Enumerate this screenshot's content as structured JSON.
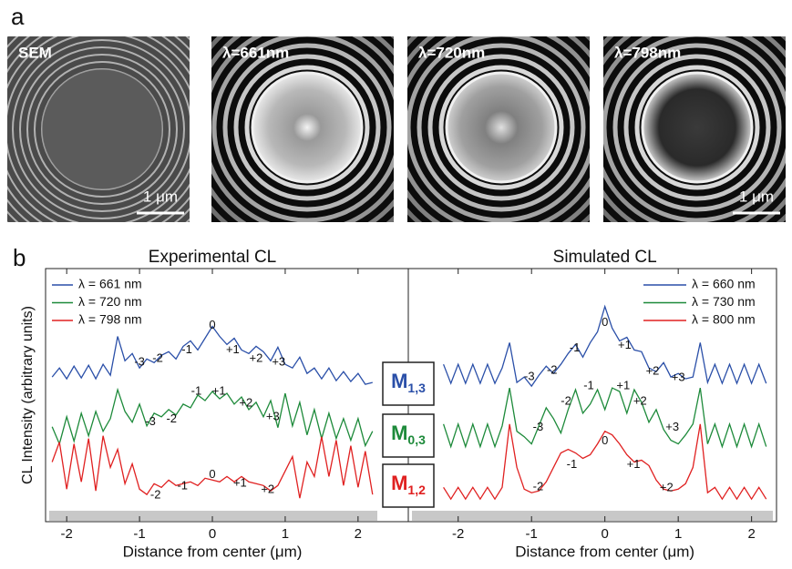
{
  "panel_a": {
    "label": "a",
    "images": [
      {
        "label": "SEM",
        "scale_bar": "1 μm"
      },
      {
        "label": "λ=661nm"
      },
      {
        "label": "λ=720nm"
      },
      {
        "label": "λ=798nm",
        "scale_bar": "1 μm"
      }
    ]
  },
  "panel_b_label": "b",
  "modes": [
    {
      "main": "M",
      "sub": "1,3",
      "color": "#2a4fa8"
    },
    {
      "main": "M",
      "sub": "0,3",
      "color": "#1d8a3a"
    },
    {
      "main": "M",
      "sub": "1,2",
      "color": "#e02020"
    }
  ],
  "chart_data": [
    {
      "type": "line",
      "title": "Experimental CL",
      "xlabel": "Distance from center (μm)",
      "ylabel": "CL Intensity (arbitrary units)",
      "x": [
        -2.2,
        -2.1,
        -2.0,
        -1.9,
        -1.8,
        -1.7,
        -1.6,
        -1.5,
        -1.4,
        -1.3,
        -1.2,
        -1.1,
        -1.0,
        -0.9,
        -0.8,
        -0.7,
        -0.6,
        -0.5,
        -0.4,
        -0.3,
        -0.2,
        -0.1,
        0,
        0.1,
        0.2,
        0.3,
        0.4,
        0.5,
        0.6,
        0.7,
        0.8,
        0.9,
        1.0,
        1.1,
        1.2,
        1.3,
        1.4,
        1.5,
        1.6,
        1.7,
        1.8,
        1.9,
        2.0,
        2.1,
        2.2
      ],
      "xlim": [
        -2.29,
        2.69
      ],
      "xticks": [
        -2,
        -1,
        0,
        1,
        2
      ],
      "ylim": [
        0,
        28
      ],
      "legend": "upper left",
      "series": [
        {
          "name": "λ = 661 nm",
          "color": "#2a4fa8",
          "values": [
            16.0,
            17.0,
            15.8,
            17.2,
            15.9,
            17.3,
            15.8,
            17.4,
            16.2,
            20.5,
            17.8,
            18.6,
            17.0,
            18.0,
            17.6,
            18.4,
            18.8,
            18.0,
            19.4,
            20.0,
            19.0,
            20.3,
            21.6,
            20.5,
            19.6,
            20.3,
            19.0,
            18.6,
            19.4,
            18.8,
            17.8,
            19.3,
            17.4,
            17.0,
            18.2,
            16.4,
            17.0,
            15.8,
            17.0,
            15.6,
            16.6,
            15.5,
            16.4,
            15.2,
            15.4
          ]
        },
        {
          "name": "λ = 720 nm",
          "color": "#1d8a3a",
          "values": [
            10.5,
            8.6,
            11.6,
            8.9,
            12.0,
            9.5,
            12.2,
            10.0,
            11.4,
            14.6,
            12.2,
            11.0,
            13.0,
            10.6,
            12.0,
            11.6,
            12.4,
            11.8,
            13.0,
            12.6,
            14.0,
            13.4,
            14.4,
            13.6,
            14.2,
            13.0,
            13.8,
            12.4,
            13.2,
            11.6,
            13.4,
            10.4,
            14.2,
            10.6,
            13.2,
            9.6,
            12.4,
            9.2,
            12.0,
            9.2,
            11.4,
            9.0,
            11.4,
            8.4,
            10.0
          ]
        },
        {
          "name": "λ = 798 nm",
          "color": "#e02020",
          "values": [
            6.6,
            8.8,
            3.6,
            8.6,
            4.4,
            9.2,
            3.4,
            9.5,
            6.0,
            8.0,
            4.2,
            6.4,
            3.6,
            3.0,
            4.2,
            3.8,
            4.6,
            4.0,
            4.2,
            4.4,
            4.0,
            4.8,
            4.6,
            4.4,
            5.0,
            4.4,
            5.0,
            4.4,
            4.2,
            4.0,
            3.4,
            4.0,
            5.6,
            7.2,
            2.6,
            6.6,
            5.0,
            9.4,
            5.0,
            9.0,
            4.0,
            8.4,
            3.8,
            7.8,
            3.0
          ]
        }
      ],
      "annotations": [
        {
          "text": "-3",
          "x": -1.0,
          "y": 17.6
        },
        {
          "text": "-2",
          "x": -0.75,
          "y": 18.0
        },
        {
          "text": "-1",
          "x": -0.35,
          "y": 19.0
        },
        {
          "text": "0",
          "x": 0,
          "y": 21.7
        },
        {
          "text": "+1",
          "x": 0.28,
          "y": 19.0
        },
        {
          "text": "+2",
          "x": 0.6,
          "y": 18.0
        },
        {
          "text": "+3",
          "x": 0.91,
          "y": 17.6
        },
        {
          "text": "-3",
          "x": -0.85,
          "y": 11.0
        },
        {
          "text": "-2",
          "x": -0.56,
          "y": 11.3
        },
        {
          "text": "-1",
          "x": -0.22,
          "y": 14.4
        },
        {
          "text": "+1",
          "x": 0.09,
          "y": 14.4
        },
        {
          "text": "+2",
          "x": 0.46,
          "y": 13.1
        },
        {
          "text": "+3",
          "x": 0.83,
          "y": 11.6
        },
        {
          "text": "-2",
          "x": -0.78,
          "y": 2.9
        },
        {
          "text": "-1",
          "x": -0.41,
          "y": 3.9
        },
        {
          "text": "0",
          "x": 0,
          "y": 5.2
        },
        {
          "text": "+1",
          "x": 0.38,
          "y": 4.2
        },
        {
          "text": "+2",
          "x": 0.76,
          "y": 3.5
        }
      ]
    },
    {
      "type": "line",
      "title": "Simulated CL",
      "xlabel": "Distance from center (μm)",
      "x": [
        -2.2,
        -2.1,
        -2.0,
        -1.9,
        -1.8,
        -1.7,
        -1.6,
        -1.5,
        -1.4,
        -1.3,
        -1.2,
        -1.1,
        -1.0,
        -0.9,
        -0.8,
        -0.7,
        -0.6,
        -0.5,
        -0.4,
        -0.3,
        -0.2,
        -0.1,
        0,
        0.1,
        0.2,
        0.3,
        0.4,
        0.5,
        0.6,
        0.7,
        0.8,
        0.9,
        1.0,
        1.1,
        1.2,
        1.3,
        1.4,
        1.5,
        1.6,
        1.7,
        1.8,
        1.9,
        2.0,
        2.1,
        2.2
      ],
      "xlim": [
        -2.68,
        2.34
      ],
      "xticks": [
        -2,
        -1,
        0,
        1,
        2
      ],
      "ylim": [
        0,
        28
      ],
      "legend": "upper right",
      "series": [
        {
          "name": "λ = 660 nm",
          "color": "#2a4fa8",
          "values": [
            17.4,
            15.3,
            17.4,
            15.3,
            17.4,
            15.3,
            17.4,
            15.3,
            17.0,
            19.8,
            15.4,
            16.0,
            15.0,
            16.2,
            17.2,
            16.4,
            17.4,
            18.6,
            19.6,
            18.2,
            19.8,
            21.0,
            23.8,
            21.4,
            20.0,
            20.4,
            19.0,
            18.8,
            17.0,
            16.6,
            17.6,
            16.0,
            16.4,
            15.8,
            16.0,
            19.8,
            15.4,
            17.4,
            15.3,
            17.4,
            15.3,
            17.4,
            15.3,
            17.4,
            15.3
          ]
        },
        {
          "name": "λ = 730 nm",
          "color": "#1d8a3a",
          "values": [
            10.8,
            8.3,
            10.8,
            8.3,
            10.8,
            8.3,
            10.8,
            8.3,
            10.6,
            14.8,
            10.0,
            9.4,
            8.6,
            10.6,
            12.6,
            11.4,
            9.8,
            12.4,
            14.6,
            12.0,
            13.0,
            14.6,
            12.4,
            14.8,
            14.4,
            12.0,
            14.6,
            13.2,
            11.0,
            12.4,
            10.2,
            9.0,
            8.6,
            9.6,
            10.8,
            14.8,
            8.6,
            10.8,
            8.3,
            10.8,
            8.3,
            10.8,
            8.3,
            10.8,
            8.3
          ]
        },
        {
          "name": "λ = 800 nm",
          "color": "#e02020",
          "values": [
            3.8,
            2.5,
            3.8,
            2.5,
            3.8,
            2.5,
            3.8,
            2.5,
            3.8,
            10.8,
            6.0,
            3.6,
            3.2,
            3.4,
            4.4,
            6.0,
            7.6,
            8.0,
            7.6,
            7.0,
            7.4,
            8.6,
            10.0,
            9.6,
            8.6,
            7.4,
            6.6,
            6.8,
            6.2,
            4.6,
            3.6,
            3.4,
            3.6,
            4.2,
            6.0,
            10.8,
            3.2,
            3.8,
            2.5,
            3.8,
            2.5,
            3.8,
            2.5,
            3.8,
            2.5
          ]
        }
      ],
      "annotations": [
        {
          "text": "-3",
          "x": -1.03,
          "y": 16.0
        },
        {
          "text": "-2",
          "x": -0.72,
          "y": 16.7
        },
        {
          "text": "-1",
          "x": -0.41,
          "y": 19.2
        },
        {
          "text": "0",
          "x": 0,
          "y": 22.0
        },
        {
          "text": "+1",
          "x": 0.27,
          "y": 19.5
        },
        {
          "text": "+2",
          "x": 0.65,
          "y": 16.6
        },
        {
          "text": "+3",
          "x": 1.0,
          "y": 15.9
        },
        {
          "text": "-3",
          "x": -0.91,
          "y": 10.4
        },
        {
          "text": "-2",
          "x": -0.53,
          "y": 13.3
        },
        {
          "text": "-1",
          "x": -0.22,
          "y": 15.0
        },
        {
          "text": "+1",
          "x": 0.25,
          "y": 15.0
        },
        {
          "text": "+2",
          "x": 0.48,
          "y": 13.3
        },
        {
          "text": "+3",
          "x": 0.92,
          "y": 10.4
        },
        {
          "text": "-2",
          "x": -0.91,
          "y": 3.8
        },
        {
          "text": "-1",
          "x": -0.45,
          "y": 6.3
        },
        {
          "text": "0",
          "x": 0,
          "y": 8.9
        },
        {
          "text": "+1",
          "x": 0.39,
          "y": 6.3
        },
        {
          "text": "+2",
          "x": 0.84,
          "y": 3.7
        }
      ]
    }
  ]
}
